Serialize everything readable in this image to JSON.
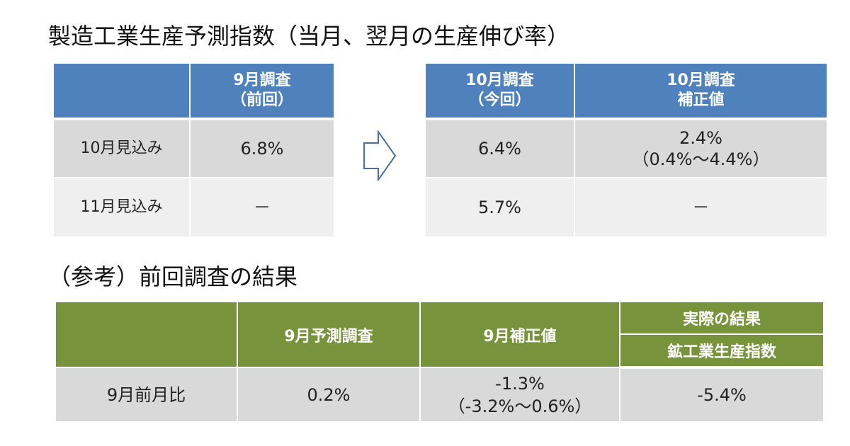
{
  "title": "製造工業生産予測指数（当月、翌月の生産伸び率）",
  "table1": {
    "header_line1": "9月調査",
    "header_line2": "（前回）",
    "rows": [
      {
        "label": "10月見込み",
        "value": "6.8%"
      },
      {
        "label": "11月見込み",
        "value": "－"
      }
    ]
  },
  "table2": {
    "col1_line1": "10月調査",
    "col1_line2": "（今回）",
    "col2_line1": "10月調査",
    "col2_line2": "補正値",
    "rows": [
      {
        "current": "6.4%",
        "corrected_line1": "2.4%",
        "corrected_line2": "（0.4%～4.4%）"
      },
      {
        "current": "5.7%",
        "corrected_line1": "－",
        "corrected_line2": ""
      }
    ]
  },
  "subtitle": "（参考）前回調査の結果",
  "table3": {
    "col_forecast": "9月予測調査",
    "col_corrected": "9月補正値",
    "col_actual_group": "実際の結果",
    "col_actual": "鉱工業生産指数",
    "row_label": "9月前月比",
    "forecast_value": "0.2%",
    "corrected_line1": "-1.3%",
    "corrected_line2": "（-3.2%～0.6%）",
    "actual_value": "-5.4%"
  },
  "colors": {
    "blue_header": "#4f81bd",
    "green_header": "#77933c",
    "row_dark": "#d9d9d9",
    "row_light": "#efefef"
  },
  "icons": {
    "arrow": "right-arrow-outline-icon"
  }
}
